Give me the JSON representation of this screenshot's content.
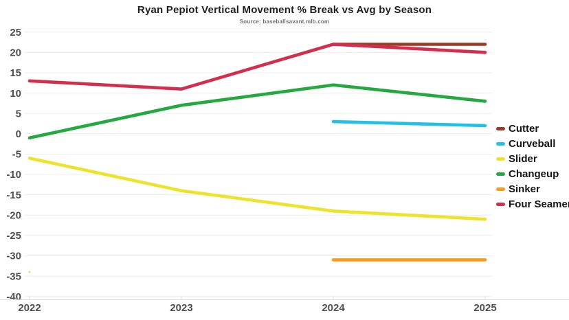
{
  "title": "Ryan Pepiot Vertical Movement % Break vs Avg by Season",
  "subtitle": "Source: baseballsavant.mlb.com",
  "chart_data": {
    "type": "line",
    "x_categories": [
      "2022",
      "2023",
      "2024",
      "2025"
    ],
    "series": [
      {
        "name": "Cutter",
        "color": "#963B28",
        "values": [
          null,
          null,
          22,
          22
        ]
      },
      {
        "name": "Curveball",
        "color": "#22BFE7",
        "values": [
          null,
          null,
          3,
          2
        ]
      },
      {
        "name": "Slider",
        "color": "#EDE32B",
        "values": [
          -6,
          -14,
          -19,
          -21
        ]
      },
      {
        "name": "Changeup",
        "color": "#26A841",
        "values": [
          -1,
          7,
          12,
          8
        ]
      },
      {
        "name": "Sinker",
        "color": "#F69C1B",
        "values": [
          null,
          null,
          -31,
          -31
        ]
      },
      {
        "name": "Four Seamer",
        "color": "#D12F4D",
        "values": [
          13,
          11,
          22,
          20
        ]
      }
    ],
    "ylim": [
      -40,
      25
    ],
    "ytick_step": 5,
    "y_tick_labels": [
      "25",
      "20",
      "15",
      "10",
      "5",
      "0",
      "-5",
      "-10",
      "-15",
      "-20",
      "-25",
      "-30",
      "-35",
      "-40"
    ],
    "xlabel": "",
    "ylabel": "",
    "grid": "horizontal-only",
    "legend_position": "right",
    "background": "#ffffff",
    "stray_point": {
      "x_category": "2022",
      "value": -34,
      "color": "#E3D37B"
    }
  }
}
